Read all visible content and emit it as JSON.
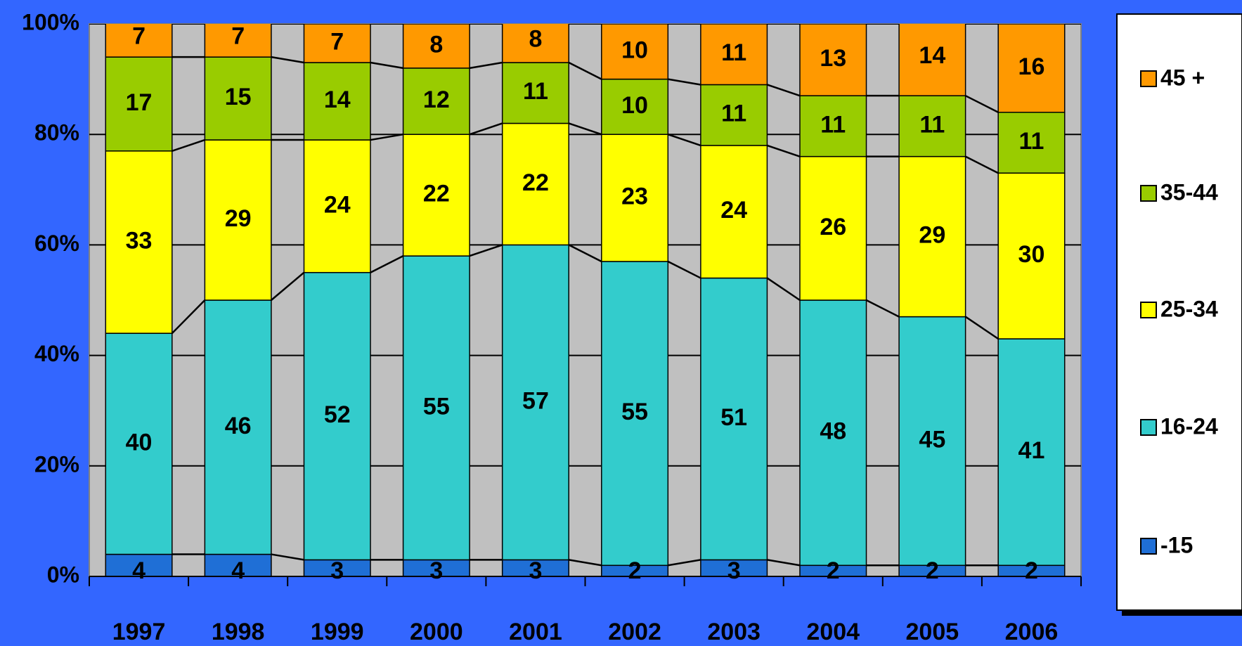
{
  "chart_data": {
    "type": "stacked_bar",
    "categories": [
      "1997",
      "1998",
      "1999",
      "2000",
      "2001",
      "2002",
      "2003",
      "2004",
      "2005",
      "2006"
    ],
    "series": [
      {
        "name": "-15",
        "color": "#1f6fd6",
        "values": [
          4,
          4,
          3,
          3,
          3,
          2,
          3,
          2,
          2,
          2
        ]
      },
      {
        "name": "16-24",
        "color": "#33cccc",
        "values": [
          40,
          46,
          52,
          55,
          57,
          55,
          51,
          48,
          45,
          41
        ]
      },
      {
        "name": "25-34",
        "color": "#ffff00",
        "values": [
          33,
          29,
          24,
          22,
          22,
          23,
          24,
          26,
          29,
          30
        ]
      },
      {
        "name": "35-44",
        "color": "#99cc00",
        "values": [
          17,
          15,
          14,
          12,
          11,
          10,
          11,
          11,
          11,
          11
        ]
      },
      {
        "name": "45 +",
        "color": "#ff9900",
        "values": [
          7,
          7,
          7,
          8,
          8,
          10,
          11,
          13,
          14,
          16
        ]
      }
    ],
    "ylim": [
      0,
      100
    ],
    "yticks": [
      {
        "value": 0,
        "label": "0%"
      },
      {
        "value": 20,
        "label": "20%"
      },
      {
        "value": 40,
        "label": "40%"
      },
      {
        "value": 60,
        "label": "60%"
      },
      {
        "value": 80,
        "label": "80%"
      },
      {
        "value": 100,
        "label": "100%"
      }
    ],
    "grid": true,
    "legend": "right"
  }
}
